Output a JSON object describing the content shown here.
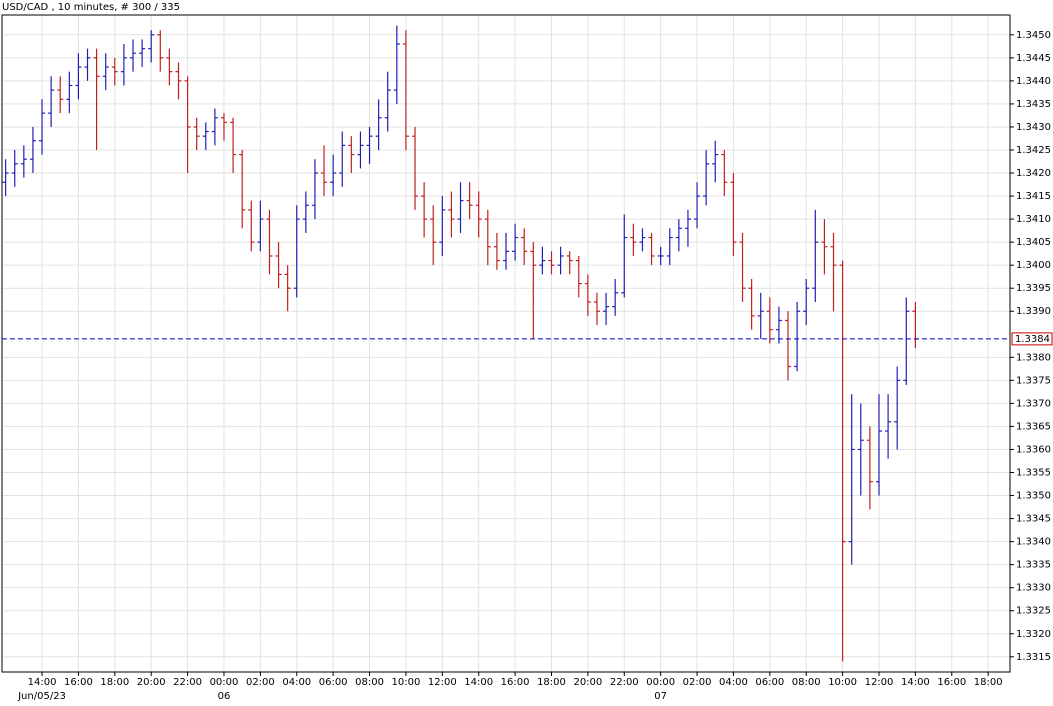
{
  "chart_data": {
    "type": "ohlc",
    "title": "USD/CAD , 10 minutes, # 300 / 335",
    "up_color": "#1f1fb8",
    "down_color": "#c21f1f",
    "grid": true,
    "grid_color": "#e2e2e2",
    "xlim": [
      11.8,
      67.2
    ],
    "ylim": [
      1.33117,
      1.34543
    ],
    "x": [
      12,
      12.5,
      13,
      13.5,
      14,
      14.5,
      15,
      15.5,
      16,
      16.5,
      17,
      17.5,
      18,
      18.5,
      19,
      19.5,
      20,
      20.5,
      21,
      21.5,
      22,
      22.5,
      23,
      23.5,
      24,
      24.5,
      25,
      25.5,
      26,
      26.5,
      27,
      27.5,
      28,
      28.5,
      29,
      29.5,
      30,
      30.5,
      31,
      31.5,
      32,
      32.5,
      33,
      33.5,
      34,
      34.5,
      35,
      35.5,
      36,
      36.5,
      37,
      37.5,
      38,
      38.5,
      39,
      39.5,
      40,
      40.5,
      41,
      41.5,
      42,
      42.5,
      43,
      43.5,
      44,
      44.5,
      45,
      45.5,
      46,
      46.5,
      47,
      47.5,
      48,
      48.5,
      49,
      49.5,
      50,
      50.5,
      51,
      51.5,
      52,
      52.5,
      53,
      53.5,
      54,
      54.5,
      55,
      55.5,
      56,
      56.5,
      57,
      57.5,
      58,
      58.5,
      59,
      59.5,
      60,
      60.5,
      61,
      61.5,
      62
    ],
    "open": [
      1.3418,
      1.342,
      1.3422,
      1.3423,
      1.3427,
      1.3433,
      1.3438,
      1.3436,
      1.3439,
      1.3443,
      1.3445,
      1.3441,
      1.3443,
      1.3442,
      1.3445,
      1.3446,
      1.3447,
      1.345,
      1.3445,
      1.3442,
      1.344,
      1.343,
      1.3428,
      1.3429,
      1.3432,
      1.3431,
      1.3424,
      1.3412,
      1.3405,
      1.341,
      1.3402,
      1.3398,
      1.3395,
      1.341,
      1.3413,
      1.342,
      1.3418,
      1.342,
      1.3426,
      1.3424,
      1.3426,
      1.3428,
      1.3432,
      1.3438,
      1.3448,
      1.3428,
      1.3415,
      1.341,
      1.3405,
      1.3412,
      1.341,
      1.3414,
      1.3413,
      1.341,
      1.3404,
      1.3401,
      1.3403,
      1.3406,
      1.3403,
      1.34,
      1.3401,
      1.34,
      1.3402,
      1.3401,
      1.3396,
      1.3392,
      1.339,
      1.3391,
      1.3394,
      1.3406,
      1.3405,
      1.3406,
      1.3402,
      1.3402,
      1.3406,
      1.3408,
      1.341,
      1.3415,
      1.3422,
      1.3424,
      1.3418,
      1.3405,
      1.3395,
      1.3389,
      1.339,
      1.3386,
      1.3388,
      1.3378,
      1.339,
      1.3395,
      1.3405,
      1.3404,
      1.34,
      1.334,
      1.336,
      1.3362,
      1.3353,
      1.3364,
      1.3366,
      1.3375,
      1.339
    ],
    "high": [
      1.3423,
      1.3425,
      1.3426,
      1.343,
      1.3436,
      1.3441,
      1.3441,
      1.3442,
      1.3446,
      1.3447,
      1.3447,
      1.3446,
      1.3445,
      1.3448,
      1.3449,
      1.3449,
      1.3451,
      1.3451,
      1.3447,
      1.3444,
      1.3441,
      1.3432,
      1.3431,
      1.3434,
      1.3433,
      1.3432,
      1.3425,
      1.3414,
      1.3414,
      1.3412,
      1.3405,
      1.34,
      1.3413,
      1.3416,
      1.3423,
      1.3426,
      1.3424,
      1.3429,
      1.3428,
      1.3429,
      1.343,
      1.3436,
      1.3442,
      1.3452,
      1.3451,
      1.343,
      1.3418,
      1.3413,
      1.3415,
      1.3416,
      1.3418,
      1.3418,
      1.3416,
      1.3412,
      1.3407,
      1.3407,
      1.3409,
      1.3408,
      1.3405,
      1.3404,
      1.3403,
      1.3404,
      1.3403,
      1.3402,
      1.3398,
      1.3394,
      1.3394,
      1.3397,
      1.3411,
      1.3409,
      1.3408,
      1.3407,
      1.3404,
      1.3408,
      1.341,
      1.3412,
      1.3418,
      1.3425,
      1.3427,
      1.3425,
      1.342,
      1.3407,
      1.3397,
      1.3394,
      1.3393,
      1.3391,
      1.339,
      1.3392,
      1.3397,
      1.3412,
      1.341,
      1.3407,
      1.3401,
      1.3372,
      1.337,
      1.3365,
      1.3372,
      1.3372,
      1.3378,
      1.3393,
      1.3392
    ],
    "low": [
      1.3415,
      1.3417,
      1.3419,
      1.342,
      1.3424,
      1.343,
      1.3433,
      1.3433,
      1.3436,
      1.344,
      1.3425,
      1.3438,
      1.3439,
      1.3439,
      1.3442,
      1.3443,
      1.3444,
      1.3442,
      1.3439,
      1.3436,
      1.342,
      1.3425,
      1.3425,
      1.3426,
      1.3427,
      1.342,
      1.3408,
      1.3403,
      1.3403,
      1.3398,
      1.3395,
      1.339,
      1.3393,
      1.3407,
      1.341,
      1.3415,
      1.3415,
      1.3417,
      1.342,
      1.3421,
      1.3422,
      1.3425,
      1.3429,
      1.3435,
      1.3425,
      1.3412,
      1.3406,
      1.34,
      1.3402,
      1.3406,
      1.3407,
      1.341,
      1.3406,
      1.34,
      1.3399,
      1.3399,
      1.3401,
      1.34,
      1.3384,
      1.3398,
      1.3398,
      1.3398,
      1.3398,
      1.3393,
      1.3389,
      1.3387,
      1.3387,
      1.3389,
      1.3393,
      1.3402,
      1.3403,
      1.34,
      1.34,
      1.34,
      1.3403,
      1.3404,
      1.3408,
      1.3413,
      1.3418,
      1.3415,
      1.3402,
      1.3392,
      1.3386,
      1.3384,
      1.3383,
      1.3383,
      1.3375,
      1.3377,
      1.3387,
      1.3392,
      1.3398,
      1.339,
      1.3314,
      1.3335,
      1.335,
      1.3347,
      1.335,
      1.3358,
      1.336,
      1.3374,
      1.3382
    ],
    "close": [
      1.342,
      1.3422,
      1.3423,
      1.3427,
      1.3433,
      1.3438,
      1.3436,
      1.3439,
      1.3443,
      1.3445,
      1.3441,
      1.3443,
      1.3442,
      1.3445,
      1.3446,
      1.3447,
      1.345,
      1.3445,
      1.3442,
      1.344,
      1.343,
      1.3428,
      1.3429,
      1.3432,
      1.3431,
      1.3424,
      1.3412,
      1.3405,
      1.341,
      1.3402,
      1.3398,
      1.3395,
      1.341,
      1.3413,
      1.342,
      1.3418,
      1.342,
      1.3426,
      1.3424,
      1.3426,
      1.3428,
      1.3432,
      1.3438,
      1.3448,
      1.3428,
      1.3415,
      1.341,
      1.3405,
      1.3412,
      1.341,
      1.3414,
      1.3413,
      1.341,
      1.3404,
      1.3401,
      1.3403,
      1.3406,
      1.3403,
      1.34,
      1.3401,
      1.34,
      1.3402,
      1.3401,
      1.3396,
      1.3392,
      1.339,
      1.3391,
      1.3394,
      1.3406,
      1.3405,
      1.3406,
      1.3402,
      1.3402,
      1.3406,
      1.3408,
      1.341,
      1.3415,
      1.3422,
      1.3424,
      1.3418,
      1.3405,
      1.3395,
      1.3389,
      1.339,
      1.3386,
      1.3388,
      1.3378,
      1.339,
      1.3395,
      1.3405,
      1.3404,
      1.34,
      1.334,
      1.336,
      1.3362,
      1.3353,
      1.3364,
      1.3366,
      1.3375,
      1.339,
      1.3384
    ],
    "last_price": {
      "value": 1.3384,
      "label": "1.3384",
      "color": "#0000cc",
      "box_color": "#cc0000"
    },
    "yticks": [
      {
        "value": 1.3315,
        "label": "1.3315"
      },
      {
        "value": 1.332,
        "label": "1.3320"
      },
      {
        "value": 1.3325,
        "label": "1.3325"
      },
      {
        "value": 1.333,
        "label": "1.3330"
      },
      {
        "value": 1.3335,
        "label": "1.3335"
      },
      {
        "value": 1.334,
        "label": "1.3340"
      },
      {
        "value": 1.3345,
        "label": "1.3345"
      },
      {
        "value": 1.335,
        "label": "1.3350"
      },
      {
        "value": 1.3355,
        "label": "1.3355"
      },
      {
        "value": 1.336,
        "label": "1.3360"
      },
      {
        "value": 1.3365,
        "label": "1.3365"
      },
      {
        "value": 1.337,
        "label": "1.3370"
      },
      {
        "value": 1.3375,
        "label": "1.3375"
      },
      {
        "value": 1.338,
        "label": "1.3380"
      },
      {
        "value": 1.339,
        "label": "1.3390"
      },
      {
        "value": 1.3395,
        "label": "1.3395"
      },
      {
        "value": 1.34,
        "label": "1.3400"
      },
      {
        "value": 1.3405,
        "label": "1.3405"
      },
      {
        "value": 1.341,
        "label": "1.3410"
      },
      {
        "value": 1.3415,
        "label": "1.3415"
      },
      {
        "value": 1.342,
        "label": "1.3420"
      },
      {
        "value": 1.3425,
        "label": "1.3425"
      },
      {
        "value": 1.343,
        "label": "1.3430"
      },
      {
        "value": 1.3435,
        "label": "1.3435"
      },
      {
        "value": 1.344,
        "label": "1.3440"
      },
      {
        "value": 1.3445,
        "label": "1.3445"
      },
      {
        "value": 1.345,
        "label": "1.3450"
      }
    ],
    "xticks": [
      {
        "value": 14,
        "label": "14:00"
      },
      {
        "value": 16,
        "label": "16:00"
      },
      {
        "value": 18,
        "label": "18:00"
      },
      {
        "value": 20,
        "label": "20:00"
      },
      {
        "value": 22,
        "label": "22:00"
      },
      {
        "value": 24,
        "label": "00:00"
      },
      {
        "value": 26,
        "label": "02:00"
      },
      {
        "value": 28,
        "label": "04:00"
      },
      {
        "value": 30,
        "label": "06:00"
      },
      {
        "value": 32,
        "label": "08:00"
      },
      {
        "value": 34,
        "label": "10:00"
      },
      {
        "value": 36,
        "label": "12:00"
      },
      {
        "value": 38,
        "label": "14:00"
      },
      {
        "value": 40,
        "label": "16:00"
      },
      {
        "value": 42,
        "label": "18:00"
      },
      {
        "value": 44,
        "label": "20:00"
      },
      {
        "value": 46,
        "label": "22:00"
      },
      {
        "value": 48,
        "label": "00:00"
      },
      {
        "value": 50,
        "label": "02:00"
      },
      {
        "value": 52,
        "label": "04:00"
      },
      {
        "value": 54,
        "label": "06:00"
      },
      {
        "value": 56,
        "label": "08:00"
      },
      {
        "value": 58,
        "label": "10:00"
      },
      {
        "value": 60,
        "label": "12:00"
      },
      {
        "value": 62,
        "label": "14:00"
      },
      {
        "value": 64,
        "label": "16:00"
      },
      {
        "value": 66,
        "label": "18:00"
      }
    ],
    "date_ticks": [
      {
        "value": 14,
        "label": "Jun/05/23"
      },
      {
        "value": 24,
        "label": "06"
      },
      {
        "value": 48,
        "label": "07"
      }
    ]
  }
}
